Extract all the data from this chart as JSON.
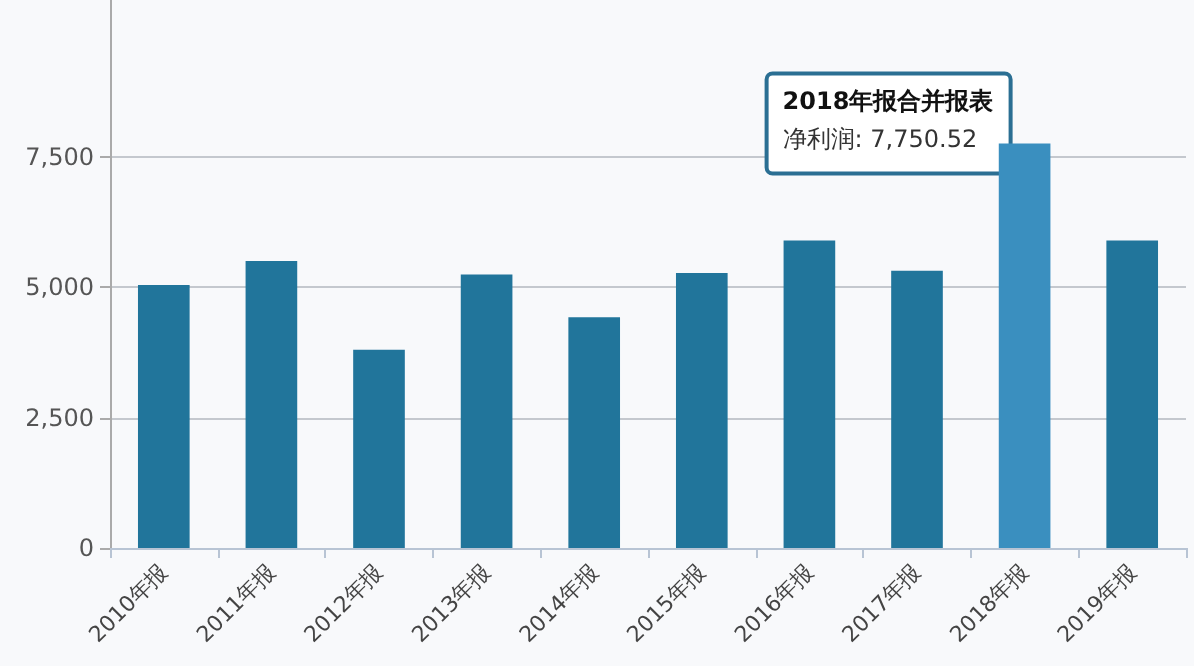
{
  "chart_data": {
    "type": "bar",
    "categories": [
      "2010年报",
      "2011年报",
      "2012年报",
      "2013年报",
      "2014年报",
      "2015年报",
      "2016年报",
      "2017年报",
      "2018年报",
      "2019年报"
    ],
    "values": [
      5040,
      5500,
      3800,
      5240,
      4420,
      5270,
      5890,
      5310,
      7750.52,
      5890
    ],
    "colors": [
      "#21759b",
      "#21759b",
      "#21759b",
      "#21759b",
      "#21759b",
      "#21759b",
      "#21759b",
      "#21759b",
      "#3a8fbf",
      "#21759b"
    ],
    "ylim": [
      0,
      10500
    ],
    "yticks": [
      0,
      {
        "value": 2500,
        "label": "2,500"
      },
      {
        "value": 5000,
        "label": "5,000"
      },
      {
        "value": 7500,
        "label": "7,500"
      }
    ],
    "grid": "y",
    "annotations": [
      {
        "text": "2018年报合并报表",
        "x": "2018年报",
        "y": 7750.52
      },
      "净利润: 7,750.52"
    ]
  }
}
